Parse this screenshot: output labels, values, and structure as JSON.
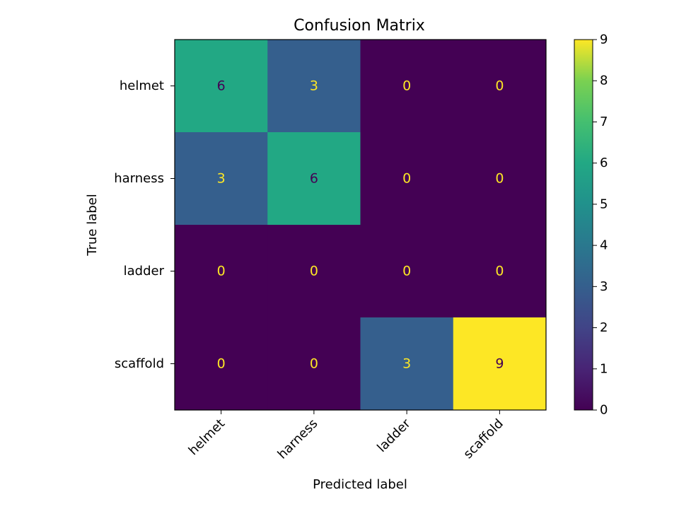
{
  "chart_data": {
    "type": "heatmap",
    "title": "Confusion Matrix",
    "xlabel": "Predicted label",
    "ylabel": "True label",
    "x_categories": [
      "helmet",
      "harness",
      "ladder",
      "scaffold"
    ],
    "y_categories": [
      "helmet",
      "harness",
      "ladder",
      "scaffold"
    ],
    "values": [
      [
        6,
        3,
        0,
        0
      ],
      [
        3,
        6,
        0,
        0
      ],
      [
        0,
        0,
        0,
        0
      ],
      [
        0,
        0,
        3,
        9
      ]
    ],
    "colorbar": {
      "min": 0,
      "max": 9,
      "ticks": [
        0,
        1,
        2,
        3,
        4,
        5,
        6,
        7,
        8,
        9
      ]
    },
    "colormap": "viridis",
    "text_colors": {
      "light": "#fde725",
      "dark": "#440154"
    }
  }
}
